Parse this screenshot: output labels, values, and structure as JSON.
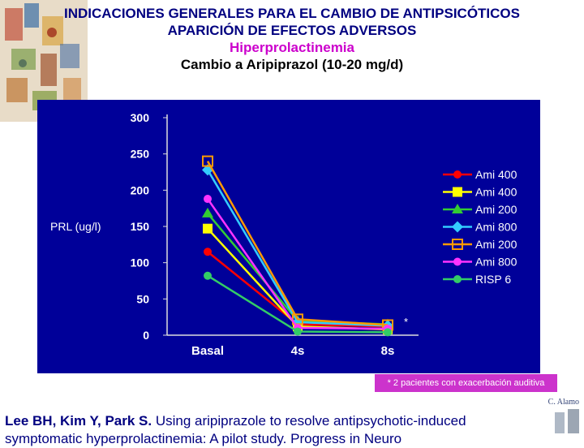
{
  "title_lines": [
    "INDICACIONES GENERALES PARA EL CAMBIO DE ANTIPSICÓTICOS",
    "APARICIÓN DE EFECTOS ADVERSOS",
    "Hiperprolactinemia",
    "Cambio a Aripiprazol (10-20 mg/d)"
  ],
  "chart_data": {
    "type": "line",
    "categories": [
      "Basal",
      "4s",
      "8s"
    ],
    "ylabel": "PRL (ug/l)",
    "ylim": [
      0,
      300
    ],
    "yticks": [
      0,
      50,
      100,
      150,
      200,
      250,
      300
    ],
    "grid": false,
    "legend_position": "right",
    "background_color": "#000099",
    "axis_text_color": "#ffffff",
    "series": [
      {
        "name": "Ami 400",
        "values": [
          115,
          15,
          12
        ],
        "color": "#ff0000",
        "marker": "circle"
      },
      {
        "name": "Ami 400",
        "values": [
          147,
          12,
          8
        ],
        "color": "#ffff00",
        "marker": "square"
      },
      {
        "name": "Ami 200",
        "values": [
          168,
          20,
          15
        ],
        "color": "#33cc33",
        "marker": "triangle"
      },
      {
        "name": "Ami 800",
        "values": [
          228,
          18,
          13
        ],
        "color": "#33ccff",
        "marker": "diamond"
      },
      {
        "name": "Ami 200",
        "values": [
          240,
          22,
          14
        ],
        "color": "#ff9900",
        "marker": "square-open"
      },
      {
        "name": "Ami 800",
        "values": [
          188,
          10,
          9
        ],
        "color": "#ff33ff",
        "marker": "circle"
      },
      {
        "name": "RISP 6",
        "values": [
          82,
          5,
          4
        ],
        "color": "#33cc66",
        "marker": "circle"
      }
    ],
    "annotations": [
      "*"
    ]
  },
  "note": "* 2 pacientes con exacerbación auditiva",
  "author": "C. Alamo",
  "citation": {
    "authors": "Lee BH, Kim Y, Park S.",
    "text": " Using aripiprazole to resolve antipsychotic-induced symptomatic hyperprolactinemia: A pilot study. Progress in Neuro"
  },
  "colors": {
    "title": "#000080",
    "subtitle_highlight": "#cc00cc",
    "note_bg": "#cc33cc"
  }
}
